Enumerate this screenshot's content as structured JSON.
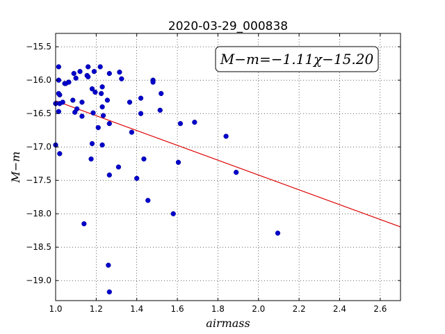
{
  "chart_data": {
    "type": "scatter",
    "title": "2020-03-29_000838",
    "xlabel": "airmass",
    "ylabel": "M−m",
    "xlim": [
      1.0,
      2.7
    ],
    "ylim": [
      -19.3,
      -15.3
    ],
    "y_inverted": true,
    "grid": true,
    "annotation": "M−m=−1.11χ−15.20",
    "annotation_placement": "top-right",
    "x_ticks": [
      "1.0",
      "1.2",
      "1.4",
      "1.6",
      "1.8",
      "2.0",
      "2.2",
      "2.4",
      "2.6"
    ],
    "x_tick_values": [
      1.0,
      1.2,
      1.4,
      1.6,
      1.8,
      2.0,
      2.2,
      2.4,
      2.6
    ],
    "y_ticks": [
      "−15.5",
      "−16.0",
      "−16.5",
      "−17.0",
      "−17.5",
      "−18.0",
      "−18.5",
      "−19.0"
    ],
    "y_tick_values": [
      -15.5,
      -16.0,
      -16.5,
      -17.0,
      -17.5,
      -18.0,
      -18.5,
      -19.0
    ],
    "fit": {
      "slope": -1.11,
      "intercept": -15.2,
      "color": "#dd0000"
    },
    "point_color": "#0000cc",
    "series": [
      {
        "points": [
          [
            1.015,
            -15.8
          ],
          [
            1.015,
            -16.0
          ],
          [
            1.02,
            -16.22
          ],
          [
            1.02,
            -16.35
          ],
          [
            1.015,
            -16.47
          ],
          [
            1.015,
            -16.2
          ],
          [
            1.0,
            -16.35
          ],
          [
            1.0,
            -16.97
          ],
          [
            1.02,
            -17.1
          ],
          [
            1.035,
            -16.33
          ],
          [
            1.045,
            -16.05
          ],
          [
            1.05,
            -16.05
          ],
          [
            1.065,
            -16.03
          ],
          [
            1.085,
            -16.3
          ],
          [
            1.09,
            -15.9
          ],
          [
            1.095,
            -16.48
          ],
          [
            1.1,
            -15.97
          ],
          [
            1.105,
            -16.43
          ],
          [
            1.12,
            -15.87
          ],
          [
            1.13,
            -16.54
          ],
          [
            1.13,
            -16.33
          ],
          [
            1.14,
            -18.15
          ],
          [
            1.155,
            -15.93
          ],
          [
            1.16,
            -15.8
          ],
          [
            1.16,
            -15.95
          ],
          [
            1.175,
            -17.18
          ],
          [
            1.18,
            -16.95
          ],
          [
            1.18,
            -16.13
          ],
          [
            1.185,
            -16.49
          ],
          [
            1.19,
            -15.87
          ],
          [
            1.195,
            -16.18
          ],
          [
            1.21,
            -16.71
          ],
          [
            1.22,
            -15.8
          ],
          [
            1.225,
            -16.2
          ],
          [
            1.23,
            -16.1
          ],
          [
            1.23,
            -16.4
          ],
          [
            1.23,
            -16.97
          ],
          [
            1.235,
            -16.53
          ],
          [
            1.255,
            -16.3
          ],
          [
            1.26,
            -18.77
          ],
          [
            1.265,
            -16.65
          ],
          [
            1.265,
            -15.9
          ],
          [
            1.265,
            -17.42
          ],
          [
            1.265,
            -19.17
          ],
          [
            1.31,
            -17.3
          ],
          [
            1.315,
            -15.88
          ],
          [
            1.325,
            -15.98
          ],
          [
            1.365,
            -16.33
          ],
          [
            1.375,
            -16.78
          ],
          [
            1.4,
            -17.47
          ],
          [
            1.42,
            -16.27
          ],
          [
            1.42,
            -16.5
          ],
          [
            1.435,
            -17.18
          ],
          [
            1.455,
            -17.8
          ],
          [
            1.48,
            -16.0
          ],
          [
            1.48,
            -16.03
          ],
          [
            1.515,
            -16.45
          ],
          [
            1.52,
            -16.2
          ],
          [
            1.58,
            -18.0
          ],
          [
            1.605,
            -17.23
          ],
          [
            1.615,
            -16.65
          ],
          [
            1.685,
            -16.63
          ],
          [
            1.84,
            -16.84
          ],
          [
            1.89,
            -17.38
          ],
          [
            2.095,
            -18.29
          ]
        ]
      }
    ]
  }
}
